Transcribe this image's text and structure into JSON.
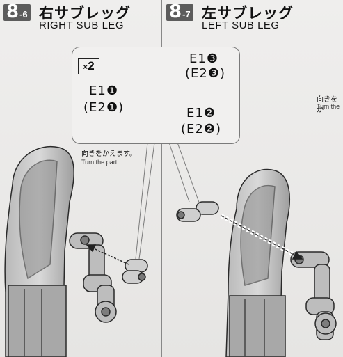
{
  "steps": [
    {
      "number": "8",
      "sub": "-6",
      "title_jp": "右サブレッグ",
      "title_en": "RIGHT SUB LEG"
    },
    {
      "number": "8",
      "sub": "-7",
      "title_jp": "左サブレッグ",
      "title_en": "LEFT SUB LEG"
    }
  ],
  "callout": {
    "quantity_prefix": "×",
    "quantity": "2",
    "parts": [
      {
        "label": "E1❸",
        "alt": "(E2❸)"
      },
      {
        "label": "E1❶",
        "alt": "(E2❶)"
      },
      {
        "label": "E1❷",
        "alt": "(E2❷)"
      }
    ]
  },
  "notes": [
    {
      "jp": "向きをかえます。",
      "en": "Turn the part."
    },
    {
      "jp": "向きをか",
      "en": "Turn the"
    }
  ],
  "colors": {
    "part_fill": "#cfcfcf",
    "part_shade": "#a9a9a9",
    "outline": "#2a2a2a"
  }
}
